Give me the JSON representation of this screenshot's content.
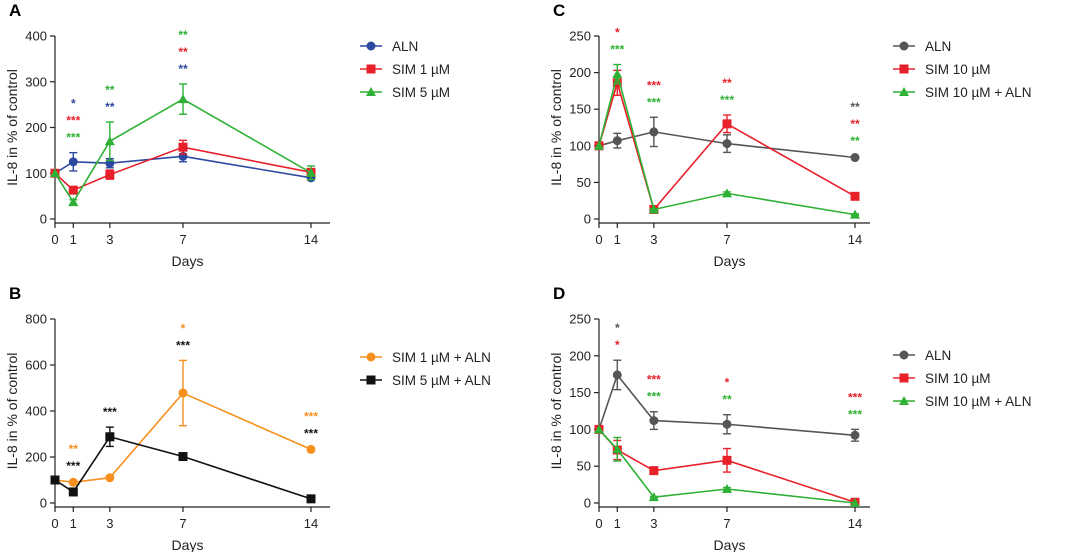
{
  "chart_data": [
    {
      "panel": "A",
      "type": "line",
      "xlabel": "Days",
      "ylabel": "IL-8 in % of control",
      "x": [
        0,
        1,
        3,
        7,
        14
      ],
      "xticks": [
        "0",
        "1",
        "3",
        "7",
        "14"
      ],
      "ylim": [
        0,
        400
      ],
      "yticks": [
        0,
        100,
        200,
        300,
        400
      ],
      "grid": false,
      "legend": "right",
      "series": [
        {
          "name": "ALN",
          "color": "#2e4aa0",
          "marker": "circle",
          "values": [
            100,
            125,
            122,
            137,
            90
          ],
          "errors": [
            0,
            20,
            10,
            12,
            5
          ]
        },
        {
          "name": "SIM 1 µM",
          "color": "#e8202a",
          "marker": "square",
          "values": [
            100,
            63,
            97,
            157,
            102
          ],
          "errors": [
            0,
            5,
            10,
            15,
            8
          ]
        },
        {
          "name": "SIM 5 µM",
          "color": "#2eb135",
          "marker": "triangle",
          "values": [
            100,
            37,
            170,
            262,
            101
          ],
          "errors": [
            0,
            5,
            42,
            33,
            15
          ]
        }
      ],
      "significance": [
        {
          "x": 1,
          "marks": [
            {
              "text": "*",
              "color": "#2e4aa0"
            },
            {
              "text": "***",
              "color": "#e8202a"
            },
            {
              "text": "***",
              "color": "#2eb135"
            }
          ]
        },
        {
          "x": 3,
          "marks": [
            {
              "text": "**",
              "color": "#2eb135"
            },
            {
              "text": "**",
              "color": "#2e4aa0"
            }
          ]
        },
        {
          "x": 7,
          "marks": [
            {
              "text": "**",
              "color": "#2eb135"
            },
            {
              "text": "**",
              "color": "#e8202a"
            },
            {
              "text": "**",
              "color": "#2e4aa0"
            }
          ]
        }
      ]
    },
    {
      "panel": "B",
      "type": "line",
      "xlabel": "Days",
      "ylabel": "IL-8 in % of control",
      "x": [
        0,
        1,
        3,
        7,
        14
      ],
      "xticks": [
        "0",
        "1",
        "3",
        "7",
        "14"
      ],
      "ylim": [
        0,
        800
      ],
      "yticks": [
        0,
        200,
        400,
        600,
        800
      ],
      "grid": false,
      "legend": "right",
      "series": [
        {
          "name": "SIM 1 µM + ALN",
          "color": "#f7901e",
          "marker": "circle",
          "values": [
            100,
            90,
            110,
            478,
            233
          ],
          "errors": [
            0,
            5,
            5,
            142,
            5
          ]
        },
        {
          "name": "SIM 5 µM + ALN",
          "color": "#111111",
          "marker": "square",
          "values": [
            100,
            48,
            288,
            202,
            18
          ],
          "errors": [
            0,
            5,
            42,
            10,
            3
          ]
        }
      ],
      "significance": [
        {
          "x": 1,
          "marks": [
            {
              "text": "**",
              "color": "#f7901e"
            },
            {
              "text": "***",
              "color": "#111111"
            }
          ]
        },
        {
          "x": 3,
          "marks": [
            {
              "text": "***",
              "color": "#111111"
            }
          ]
        },
        {
          "x": 7,
          "marks": [
            {
              "text": "*",
              "color": "#f7901e"
            },
            {
              "text": "***",
              "color": "#111111"
            }
          ]
        },
        {
          "x": 14,
          "marks": [
            {
              "text": "***",
              "color": "#f7901e"
            },
            {
              "text": "***",
              "color": "#111111"
            }
          ]
        }
      ]
    },
    {
      "panel": "C",
      "type": "line",
      "xlabel": "Days",
      "ylabel": "IL-8 in % of control",
      "x": [
        0,
        1,
        3,
        7,
        14
      ],
      "xticks": [
        "0",
        "1",
        "3",
        "7",
        "14"
      ],
      "ylim": [
        0,
        250
      ],
      "yticks": [
        0,
        50,
        100,
        150,
        200,
        250
      ],
      "grid": false,
      "legend": "right",
      "series": [
        {
          "name": "ALN",
          "color": "#555555",
          "marker": "circle",
          "values": [
            100,
            107,
            119,
            103,
            84
          ],
          "errors": [
            0,
            10,
            20,
            12,
            2
          ]
        },
        {
          "name": "SIM 10 µM",
          "color": "#e8202a",
          "marker": "square",
          "values": [
            100,
            186,
            13,
            130,
            31
          ],
          "errors": [
            0,
            17,
            2,
            12,
            3
          ]
        },
        {
          "name": "SIM 10 µM + ALN",
          "color": "#2eb135",
          "marker": "triangle",
          "values": [
            100,
            198,
            13,
            35,
            6
          ],
          "errors": [
            0,
            13,
            1,
            2,
            1
          ]
        }
      ],
      "significance": [
        {
          "x": 1,
          "marks": [
            {
              "text": "*",
              "color": "#e8202a"
            },
            {
              "text": "***",
              "color": "#2eb135"
            }
          ]
        },
        {
          "x": 3,
          "marks": [
            {
              "text": "***",
              "color": "#e8202a"
            },
            {
              "text": "***",
              "color": "#2eb135"
            }
          ]
        },
        {
          "x": 7,
          "marks": [
            {
              "text": "**",
              "color": "#e8202a"
            },
            {
              "text": "***",
              "color": "#2eb135"
            }
          ]
        },
        {
          "x": 14,
          "marks": [
            {
              "text": "**",
              "color": "#555555"
            },
            {
              "text": "**",
              "color": "#e8202a"
            },
            {
              "text": "**",
              "color": "#2eb135"
            }
          ]
        }
      ]
    },
    {
      "panel": "D",
      "type": "line",
      "xlabel": "Days",
      "ylabel": "IL-8 in % of control",
      "x": [
        0,
        1,
        3,
        7,
        14
      ],
      "xticks": [
        "0",
        "1",
        "3",
        "7",
        "14"
      ],
      "ylim": [
        0,
        250
      ],
      "yticks": [
        0,
        50,
        100,
        150,
        200,
        250
      ],
      "grid": false,
      "legend": "right",
      "series": [
        {
          "name": "ALN",
          "color": "#555555",
          "marker": "circle",
          "values": [
            100,
            174,
            112,
            107,
            92
          ],
          "errors": [
            0,
            20,
            12,
            13,
            8
          ]
        },
        {
          "name": "SIM 10 µM",
          "color": "#e8202a",
          "marker": "square",
          "values": [
            100,
            72,
            44,
            58,
            1
          ],
          "errors": [
            0,
            13,
            3,
            16,
            1
          ]
        },
        {
          "name": "SIM 10 µM + ALN",
          "color": "#2eb135",
          "marker": "triangle",
          "values": [
            100,
            73,
            8,
            19,
            0
          ],
          "errors": [
            0,
            16,
            1,
            2,
            0
          ]
        }
      ],
      "significance": [
        {
          "x": 1,
          "marks": [
            {
              "text": "*",
              "color": "#555555"
            },
            {
              "text": "*",
              "color": "#e8202a"
            }
          ]
        },
        {
          "x": 3,
          "marks": [
            {
              "text": "***",
              "color": "#e8202a"
            },
            {
              "text": "***",
              "color": "#2eb135"
            }
          ]
        },
        {
          "x": 7,
          "marks": [
            {
              "text": "*",
              "color": "#e8202a"
            },
            {
              "text": "**",
              "color": "#2eb135"
            }
          ]
        },
        {
          "x": 14,
          "marks": [
            {
              "text": "***",
              "color": "#e8202a"
            },
            {
              "text": "***",
              "color": "#2eb135"
            }
          ]
        }
      ]
    }
  ]
}
